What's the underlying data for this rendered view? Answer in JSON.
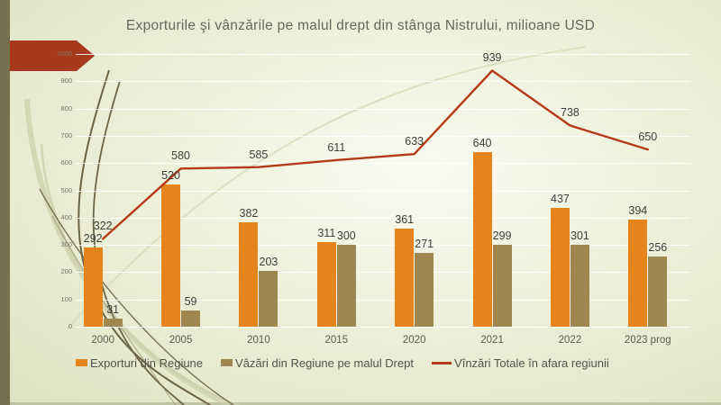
{
  "chart_data": {
    "type": "bar",
    "subtype": "grouped-bars-with-line-overlay",
    "title": "Exporturile şi vânzările pe malul drept din stânga Nistrului, milioane USD",
    "xlabel": "",
    "ylabel": "",
    "categories": [
      "2000",
      "2005",
      "2010",
      "2015",
      "2020",
      "2021",
      "2022",
      "2023 prog"
    ],
    "series": [
      {
        "name": "Exporturi din Regiune",
        "type": "bar",
        "color": "#e5831c",
        "values": [
          292,
          520,
          382,
          311,
          361,
          640,
          437,
          394
        ]
      },
      {
        "name": "Vâzări din Regiune pe malul Drept",
        "type": "bar",
        "color": "#a08750",
        "values": [
          31,
          59,
          203,
          300,
          271,
          299,
          301,
          256
        ]
      },
      {
        "name": "Vînzări Totale în afara regiunii",
        "type": "line",
        "color": "#b43a18",
        "values": [
          322,
          580,
          585,
          611,
          633,
          939,
          738,
          650
        ]
      }
    ],
    "ylim": [
      0,
      1000
    ],
    "ytick_step": 100,
    "grid": true,
    "data_labels": true,
    "legend_position": "bottom"
  },
  "decor": {
    "arrow_color": "#a73a1d",
    "stripe_color": "#76704e",
    "curve_dark": "#6b6546",
    "curve_light": "#ccd0ac",
    "curve_faint": "#d9ddbd"
  }
}
